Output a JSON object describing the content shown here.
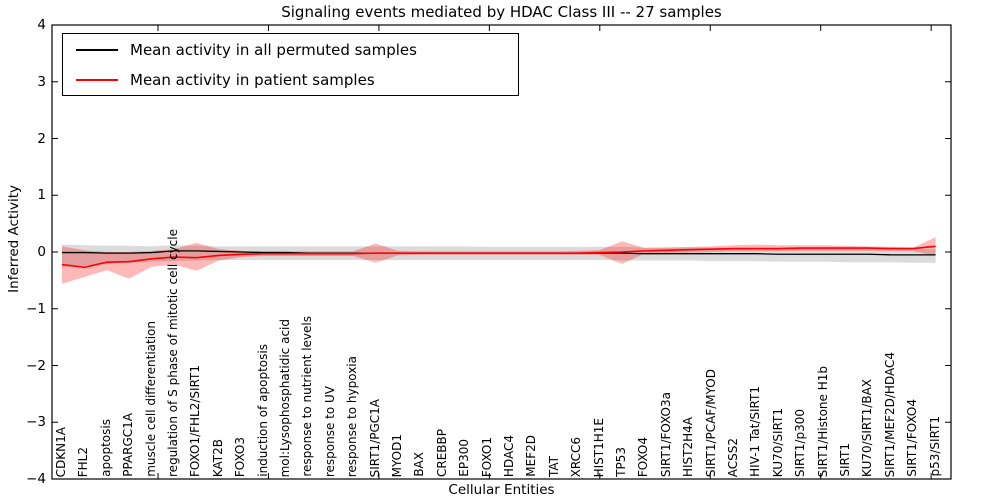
{
  "title": "Signaling events mediated by HDAC Class III -- 27 samples",
  "axes": {
    "ylabel": "Inferred Activity",
    "xlabel": "Cellular Entities",
    "ytick_labels": [
      "4",
      "3",
      "2",
      "1",
      "0",
      "−1",
      "−2",
      "−3",
      "−4"
    ]
  },
  "legend": {
    "items": [
      {
        "label": "Mean activity in all permuted samples",
        "color": "#000000"
      },
      {
        "label": "Mean activity in patient samples",
        "color": "#ff0000"
      }
    ]
  },
  "chart_data": {
    "type": "line",
    "title": "Signaling events mediated by HDAC Class III -- 27 samples",
    "xlabel": "Cellular Entities",
    "ylabel": "Inferred Activity",
    "ylim": [
      -4,
      4
    ],
    "grid": false,
    "legend_position": "upper left",
    "categories": [
      "CDKN1A",
      "FHL2",
      "apoptosis",
      "PPARGC1A",
      "muscle cell differentiation",
      "regulation of S phase of mitotic cell cycle",
      "FOXO1/FHL2/SIRT1",
      "KAT2B",
      "FOXO3",
      "induction of apoptosis",
      "mol:Lysophosphatidic acid",
      "response to nutrient levels",
      "response to UV",
      "response to hypoxia",
      "SIRT1/PGC1A",
      "MYOD1",
      "BAX",
      "CREBBP",
      "EP300",
      "FOXO1",
      "HDAC4",
      "MEF2D",
      "TAT",
      "XRCC6",
      "HIST1H1E",
      "TP53",
      "FOXO4",
      "SIRT1/FOXO3a",
      "HIST2H4A",
      "SIRT1/PCAF/MYOD",
      "ACSS2",
      "HIV-1 Tat/SIRT1",
      "KU70/SIRT1",
      "SIRT1/p300",
      "SIRT1/Histone H1b",
      "SIRT1",
      "KU70/SIRT1/BAX",
      "SIRT1/MEF2D/HDAC4",
      "SIRT1/FOXO4",
      "p53/SIRT1"
    ],
    "series": [
      {
        "name": "Mean activity in all permuted samples",
        "color": "#000000",
        "band_color": "rgba(0,0,0,0.14)",
        "values": [
          -0.01,
          -0.01,
          -0.02,
          -0.02,
          -0.01,
          0.02,
          0.02,
          0.01,
          0.0,
          -0.01,
          -0.01,
          -0.02,
          -0.02,
          -0.02,
          -0.02,
          -0.02,
          -0.02,
          -0.02,
          -0.02,
          -0.02,
          -0.02,
          -0.02,
          -0.02,
          -0.02,
          -0.02,
          -0.02,
          -0.03,
          -0.03,
          -0.03,
          -0.03,
          -0.03,
          -0.03,
          -0.04,
          -0.04,
          -0.04,
          -0.04,
          -0.04,
          -0.05,
          -0.05,
          -0.05
        ],
        "band_upper": [
          0.13,
          0.12,
          0.11,
          0.11,
          0.1,
          0.12,
          0.11,
          0.1,
          0.1,
          0.1,
          0.1,
          0.1,
          0.1,
          0.1,
          0.1,
          0.1,
          0.1,
          0.1,
          0.1,
          0.09,
          0.09,
          0.09,
          0.09,
          0.09,
          0.09,
          0.09,
          0.08,
          0.08,
          0.08,
          0.08,
          0.07,
          0.07,
          0.07,
          0.06,
          0.06,
          0.06,
          0.05,
          0.05,
          0.05,
          0.05
        ],
        "band_lower": [
          -0.28,
          -0.24,
          -0.21,
          -0.19,
          -0.17,
          -0.16,
          -0.15,
          -0.14,
          -0.14,
          -0.14,
          -0.14,
          -0.14,
          -0.14,
          -0.14,
          -0.14,
          -0.14,
          -0.14,
          -0.14,
          -0.14,
          -0.14,
          -0.14,
          -0.14,
          -0.14,
          -0.14,
          -0.14,
          -0.15,
          -0.15,
          -0.15,
          -0.15,
          -0.16,
          -0.16,
          -0.16,
          -0.17,
          -0.17,
          -0.17,
          -0.18,
          -0.18,
          -0.18,
          -0.19,
          -0.19
        ]
      },
      {
        "name": "Mean activity in patient samples",
        "color": "#ff0000",
        "band_color": "rgba(255,0,0,0.28)",
        "values": [
          -0.22,
          -0.27,
          -0.18,
          -0.17,
          -0.12,
          -0.09,
          -0.1,
          -0.06,
          -0.04,
          -0.03,
          -0.03,
          -0.03,
          -0.03,
          -0.03,
          -0.02,
          -0.02,
          -0.02,
          -0.02,
          -0.02,
          -0.02,
          -0.02,
          -0.02,
          -0.02,
          -0.02,
          -0.01,
          0.0,
          0.02,
          0.03,
          0.04,
          0.05,
          0.06,
          0.06,
          0.06,
          0.07,
          0.07,
          0.07,
          0.07,
          0.06,
          0.06,
          0.1
        ],
        "band_upper": [
          0.1,
          0.03,
          0.0,
          0.0,
          0.02,
          0.05,
          0.16,
          0.05,
          0.02,
          0.01,
          0.01,
          0.01,
          0.01,
          0.01,
          0.15,
          0.02,
          0.01,
          0.01,
          0.01,
          0.01,
          0.01,
          0.01,
          0.01,
          0.02,
          0.03,
          0.19,
          0.07,
          0.08,
          0.09,
          0.1,
          0.12,
          0.13,
          0.12,
          0.12,
          0.12,
          0.11,
          0.1,
          0.09,
          0.08,
          0.26
        ],
        "band_lower": [
          -0.56,
          -0.44,
          -0.32,
          -0.47,
          -0.26,
          -0.22,
          -0.33,
          -0.15,
          -0.09,
          -0.07,
          -0.07,
          -0.07,
          -0.07,
          -0.07,
          -0.19,
          -0.06,
          -0.05,
          -0.05,
          -0.05,
          -0.05,
          -0.05,
          -0.05,
          -0.05,
          -0.05,
          -0.05,
          -0.21,
          -0.03,
          -0.02,
          -0.01,
          0.0,
          0.01,
          0.01,
          0.01,
          0.02,
          0.02,
          0.02,
          0.02,
          0.01,
          0.01,
          -0.06
        ]
      }
    ]
  }
}
